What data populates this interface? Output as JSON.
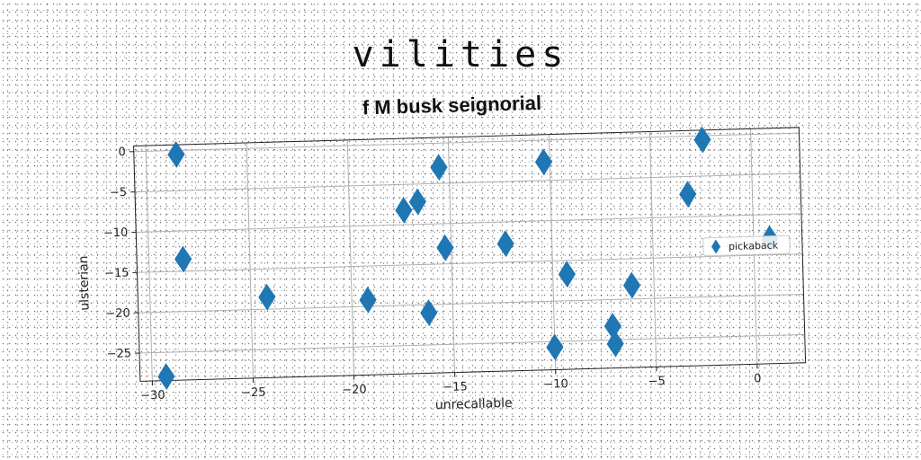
{
  "header": {
    "title": "vilities"
  },
  "chart_data": {
    "type": "scatter",
    "title": "f M busk seignorial",
    "xlabel": "unrecallable",
    "ylabel": "ulsterian",
    "xlim": [
      -30.6,
      2.4
    ],
    "ylim": [
      -28.5,
      0.7
    ],
    "xticks": [
      -30,
      -25,
      -20,
      -15,
      -10,
      -5,
      0
    ],
    "yticks": [
      0,
      -5,
      -10,
      -15,
      -20,
      -25
    ],
    "grid": true,
    "legend_position": "right",
    "marker": "thin-diamond",
    "colors": {
      "series": "#1f77b4",
      "grid": "#b0b0b0",
      "axes": "#222222"
    },
    "series": [
      {
        "name": "pickaback",
        "points": [
          {
            "x": -28.5,
            "y": -0.5
          },
          {
            "x": -28.3,
            "y": -13.5
          },
          {
            "x": -29.3,
            "y": -28.0
          },
          {
            "x": -24.2,
            "y": -18.5
          },
          {
            "x": -19.2,
            "y": -19.2
          },
          {
            "x": -17.3,
            "y": -8.2
          },
          {
            "x": -16.6,
            "y": -7.2
          },
          {
            "x": -16.2,
            "y": -21.0
          },
          {
            "x": -15.5,
            "y": -3.0
          },
          {
            "x": -15.3,
            "y": -13.0
          },
          {
            "x": -12.3,
            "y": -12.7
          },
          {
            "x": -10.3,
            "y": -2.7
          },
          {
            "x": -10.0,
            "y": -25.7
          },
          {
            "x": -9.3,
            "y": -16.7
          },
          {
            "x": -7.1,
            "y": -23.3
          },
          {
            "x": -7.0,
            "y": -25.5
          },
          {
            "x": -6.1,
            "y": -18.3
          },
          {
            "x": -3.2,
            "y": -7.2
          },
          {
            "x": -2.4,
            "y": -0.5
          },
          {
            "x": 0.8,
            "y": -13.0
          }
        ]
      }
    ]
  }
}
